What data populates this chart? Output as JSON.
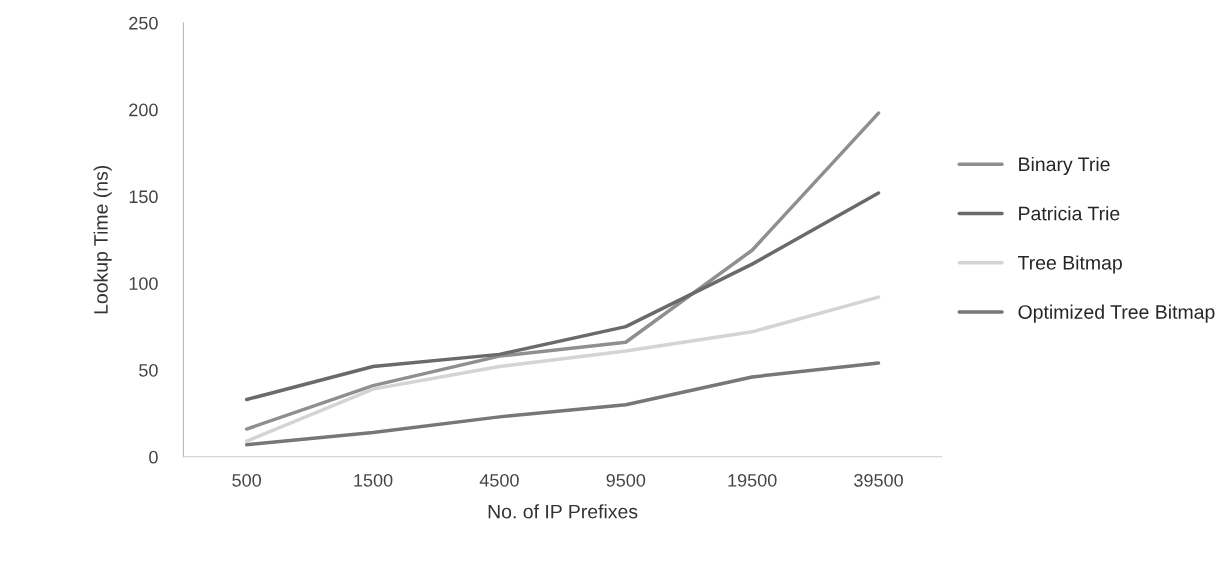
{
  "chart_data": {
    "type": "line",
    "xlabel": "No. of IP Prefixes",
    "ylabel": "Lookup Time (ns)",
    "categories": [
      "500",
      "1500",
      "4500",
      "9500",
      "19500",
      "39500"
    ],
    "series": [
      {
        "name": "Binary Trie",
        "color": "#8f8f8f",
        "values": [
          16,
          41,
          58,
          66,
          119,
          198
        ]
      },
      {
        "name": "Patricia Trie",
        "color": "#6a6a6a",
        "values": [
          33,
          52,
          59,
          75,
          111,
          152
        ]
      },
      {
        "name": "Tree Bitmap",
        "color": "#d4d4d4",
        "values": [
          9,
          39,
          52,
          61,
          72,
          92
        ]
      },
      {
        "name": "Optimized Tree Bitmap",
        "color": "#777777",
        "values": [
          7,
          14,
          23,
          30,
          46,
          54
        ]
      }
    ],
    "ylim": [
      0,
      250
    ],
    "yticks": [
      0,
      50,
      100,
      150,
      200,
      250
    ],
    "grid": false,
    "legend": "right",
    "marker": "none",
    "line_style": "solid"
  }
}
